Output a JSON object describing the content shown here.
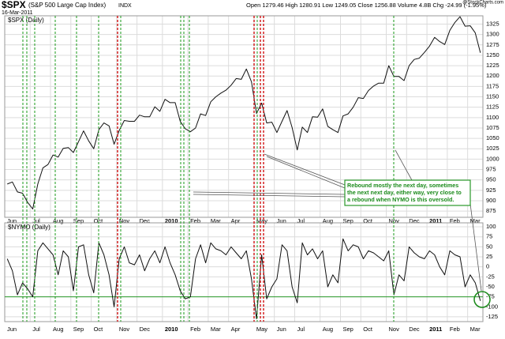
{
  "header": {
    "symbol": "$SPX",
    "name": "(S&P 500 Large Cap Index)",
    "exchange": "INDX",
    "date": "16-Mar-2011",
    "stats": "Open 1279.46 High 1280.91 Low 1249.05 Close 1256.88 Volume 4.8B Chg -24.99 (-1.95%)",
    "source": "@StockCharts.com"
  },
  "chart_data": [
    {
      "type": "line",
      "label": "$SPX (Daily)",
      "color": "#111111",
      "categories": [
        "Jun",
        null,
        null,
        null,
        null,
        "Jul",
        null,
        null,
        null,
        "Aug",
        null,
        null,
        null,
        "Sep",
        null,
        null,
        null,
        "Oct",
        null,
        null,
        null,
        null,
        "Nov",
        null,
        null,
        null,
        "Dec",
        null,
        null,
        null,
        null,
        "2010",
        null,
        null,
        null,
        null,
        "Feb",
        null,
        null,
        null,
        "Mar",
        null,
        null,
        null,
        "Apr",
        null,
        null,
        null,
        null,
        "May",
        null,
        null,
        null,
        "Jun",
        null,
        null,
        null,
        "Jul",
        null,
        null,
        null,
        null,
        "Aug",
        null,
        null,
        null,
        "Sep",
        null,
        null,
        null,
        "Oct",
        null,
        null,
        null,
        null,
        "Nov",
        null,
        null,
        null,
        "Dec",
        null,
        null,
        null,
        "2011",
        null,
        null,
        null,
        "Feb",
        null,
        null,
        null,
        "Mar",
        null,
        null
      ],
      "values": [
        940,
        945,
        921,
        918,
        896,
        880,
        940,
        979,
        987,
        1010,
        1005,
        1026,
        1028,
        1016,
        1042,
        1068,
        1044,
        1025,
        1071,
        1087,
        1080,
        1036,
        1069,
        1093,
        1091,
        1091,
        1106,
        1102,
        1102,
        1126,
        1115,
        1144,
        1136,
        1136,
        1091,
        1073,
        1066,
        1075,
        1109,
        1105,
        1138,
        1150,
        1159,
        1166,
        1178,
        1194,
        1192,
        1217,
        1186,
        1110,
        1135,
        1087,
        1089,
        1064,
        1091,
        1117,
        1076,
        1022,
        1077,
        1064,
        1102,
        1101,
        1121,
        1079,
        1071,
        1064,
        1104,
        1109,
        1125,
        1148,
        1146,
        1165,
        1176,
        1183,
        1183,
        1225,
        1199,
        1199,
        1189,
        1225,
        1240,
        1243,
        1257,
        1272,
        1293,
        1283,
        1276,
        1310,
        1329,
        1343,
        1320,
        1321,
        1304,
        1256
      ],
      "ylim": [
        860,
        1345
      ],
      "yticks": [
        875,
        900,
        925,
        950,
        975,
        1000,
        1025,
        1050,
        1075,
        1100,
        1125,
        1150,
        1175,
        1200,
        1225,
        1250,
        1275,
        1300,
        1325
      ],
      "grid": true,
      "annotation": [
        "Rebound mostly the next day, sometimes",
        "the next next day, either way, very close to",
        "a rebound when NYMO is this oversold."
      ]
    },
    {
      "type": "line",
      "label": "$NYMO (Daily)",
      "color": "#111111",
      "categories": [
        "Jun",
        null,
        null,
        null,
        null,
        "Jul",
        null,
        null,
        null,
        "Aug",
        null,
        null,
        null,
        "Sep",
        null,
        null,
        null,
        "Oct",
        null,
        null,
        null,
        null,
        "Nov",
        null,
        null,
        null,
        "Dec",
        null,
        null,
        null,
        null,
        "2010",
        null,
        null,
        null,
        null,
        "Feb",
        null,
        null,
        null,
        "Mar",
        null,
        null,
        null,
        "Apr",
        null,
        null,
        null,
        null,
        "May",
        null,
        null,
        null,
        "Jun",
        null,
        null,
        null,
        "Jul",
        null,
        null,
        null,
        null,
        "Aug",
        null,
        null,
        null,
        "Sep",
        null,
        null,
        null,
        "Oct",
        null,
        null,
        null,
        null,
        "Nov",
        null,
        null,
        null,
        "Dec",
        null,
        null,
        null,
        "2011",
        null,
        null,
        null,
        "Feb",
        null,
        null,
        null,
        "Mar",
        null,
        null
      ],
      "values": [
        20,
        -10,
        -70,
        -40,
        -55,
        -75,
        40,
        60,
        45,
        30,
        -20,
        40,
        25,
        -60,
        50,
        55,
        -20,
        -65,
        60,
        30,
        -20,
        -100,
        20,
        50,
        10,
        5,
        30,
        -10,
        20,
        40,
        10,
        50,
        10,
        -20,
        -60,
        -80,
        -75,
        20,
        55,
        10,
        60,
        45,
        40,
        30,
        50,
        35,
        20,
        40,
        -30,
        -130,
        30,
        -80,
        -50,
        -30,
        55,
        40,
        -50,
        -90,
        60,
        30,
        45,
        20,
        40,
        -50,
        -20,
        -40,
        70,
        40,
        55,
        50,
        20,
        40,
        35,
        25,
        15,
        40,
        -70,
        -20,
        -35,
        50,
        35,
        25,
        20,
        40,
        30,
        0,
        -20,
        40,
        30,
        25,
        -50,
        -20,
        -40,
        -85
      ],
      "ylim": [
        -137,
        110
      ],
      "yticks": [
        100,
        75,
        50,
        25,
        0,
        -25,
        -50,
        -75,
        -100,
        -125
      ],
      "grid": true,
      "hline": -75,
      "hline_color": "#2a9a2a"
    }
  ]
}
